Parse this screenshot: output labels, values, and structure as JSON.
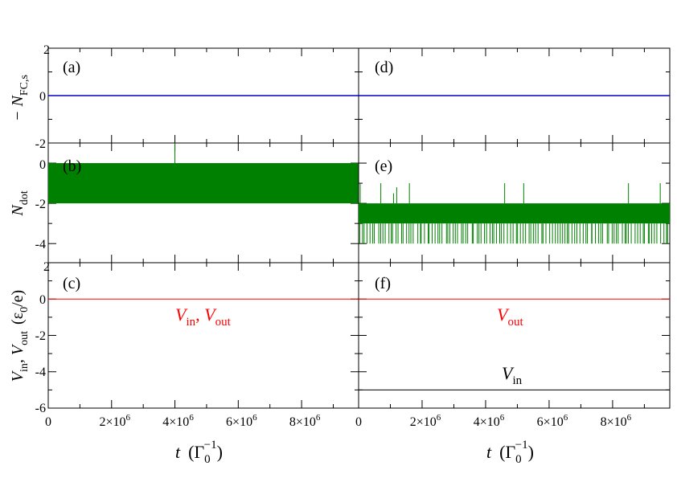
{
  "chart_data": [
    {
      "type": "line",
      "panel_label": "(a)",
      "ylabel": "− N",
      "ylabel_sub": "FC,s",
      "ylim": [
        -2,
        2
      ],
      "ytick_labels": [
        "2",
        "0",
        "-2"
      ],
      "ytick_values": [
        2,
        0,
        -2
      ],
      "xlim": [
        0,
        9800000
      ],
      "series": [
        {
          "color": "#0000cc",
          "x": [
            0,
            9800000
          ],
          "y": [
            0,
            0
          ]
        }
      ]
    },
    {
      "type": "line",
      "panel_label": "(d)",
      "ylim": [
        -2,
        2
      ],
      "xlim": [
        0,
        9800000
      ],
      "series": [
        {
          "color": "#0000cc",
          "x": [
            0,
            9800000
          ],
          "y": [
            0,
            0
          ]
        }
      ]
    },
    {
      "type": "area",
      "panel_label": "(b)",
      "ylabel": "N",
      "ylabel_sub": "dot",
      "ylim": [
        -5,
        1
      ],
      "ytick_labels": [
        "0",
        "-2",
        "-4"
      ],
      "ytick_values": [
        0,
        -2,
        -4
      ],
      "xlim": [
        0,
        9800000
      ],
      "band": {
        "from": -2,
        "to": 0,
        "color": "#008000"
      },
      "spikes": [
        {
          "x": 4000000,
          "from": 0,
          "to": 1
        }
      ]
    },
    {
      "type": "area",
      "panel_label": "(e)",
      "ylim": [
        -5,
        1
      ],
      "xlim": [
        0,
        9800000
      ],
      "band": {
        "from": -3,
        "to": -2,
        "color": "#008000"
      },
      "spikes_up": [
        {
          "x": 50000,
          "to": -1
        },
        {
          "x": 700000,
          "to": -1
        },
        {
          "x": 1100000,
          "to": -1.5
        },
        {
          "x": 1200000,
          "to": -1.2
        },
        {
          "x": 1600000,
          "to": -1
        },
        {
          "x": 4600000,
          "to": -1
        },
        {
          "x": 5200000,
          "to": -1
        },
        {
          "x": 8500000,
          "to": -1
        },
        {
          "x": 9500000,
          "to": -1
        }
      ],
      "spikes_down_to": -4
    },
    {
      "type": "line",
      "panel_label": "(c)",
      "ylabel": "V",
      "ylabel_sub_in": "in",
      "ylabel_comma": ", V",
      "ylabel_sub_out": "out",
      "ylabel_units_a": "(ε",
      "ylabel_units_sub": "0",
      "ylabel_units_b": "/e)",
      "ylim": [
        -6,
        2
      ],
      "ytick_labels": [
        "2",
        "0",
        "-2",
        "-4",
        "-6"
      ],
      "ytick_values": [
        2,
        0,
        -2,
        -4,
        -6
      ],
      "xlim": [
        0,
        9800000
      ],
      "xtick_labels": [
        "0",
        "2×10",
        "4×10",
        "6×10",
        "8×10"
      ],
      "xtick_exp": "6",
      "xtick_values": [
        0,
        2000000,
        4000000,
        6000000,
        8000000
      ],
      "series": [
        {
          "color": "#ff0000",
          "x": [
            0,
            9800000
          ],
          "y": [
            0,
            0
          ]
        },
        {
          "color": "#000000",
          "x": [
            0,
            9800000
          ],
          "y": [
            0,
            0
          ]
        }
      ],
      "annotation": {
        "v1": "V",
        "v1_sub": "in",
        "comma": ", ",
        "v2": "V",
        "v2_sub": "out",
        "color": "#ff0000"
      }
    },
    {
      "type": "line",
      "panel_label": "(f)",
      "ylim": [
        -6,
        2
      ],
      "xlim": [
        0,
        9800000
      ],
      "xtick_labels": [
        "0",
        "2×10",
        "4×10",
        "6×10",
        "8×10"
      ],
      "xtick_exp": "6",
      "xtick_values": [
        0,
        2000000,
        4000000,
        6000000,
        8000000
      ],
      "series": [
        {
          "name": "V_out",
          "color": "#ff0000",
          "x": [
            0,
            9800000
          ],
          "y": [
            0,
            0
          ]
        },
        {
          "name": "V_in",
          "color": "#000000",
          "x": [
            0,
            9800000
          ],
          "y": [
            -5,
            -5
          ]
        }
      ],
      "annotation_out": {
        "v": "V",
        "sub": "out",
        "color": "#ff0000"
      },
      "annotation_in": {
        "v": "V",
        "sub": "in",
        "color": "#000000"
      }
    }
  ],
  "xlabel": {
    "t": "t",
    "gamma": "(Γ",
    "sub": "0",
    "sup": "−1",
    "close": ")"
  }
}
